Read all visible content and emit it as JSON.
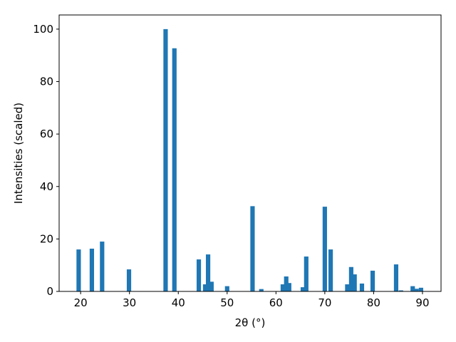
{
  "chart_data": {
    "type": "bar",
    "x_label": "2θ (°)",
    "y_label": "Intensities (scaled)",
    "color": "#1f77b4",
    "bar_width": 0.9,
    "x": [
      19.6,
      22.3,
      24.4,
      29.9,
      37.4,
      39.2,
      44.2,
      45.5,
      46.1,
      46.8,
      50.0,
      55.2,
      57.0,
      61.4,
      62.1,
      62.7,
      65.5,
      66.2,
      70.0,
      71.2,
      74.6,
      75.4,
      76.1,
      77.6,
      79.8,
      84.6,
      85.6,
      88.0,
      88.8,
      89.7
    ],
    "values": [
      16,
      16.3,
      19,
      8.4,
      100,
      92.7,
      12.2,
      2.7,
      14.1,
      3.7,
      2,
      32.5,
      0.9,
      2.7,
      5.7,
      3.2,
      1.6,
      13.3,
      32.3,
      16,
      2.7,
      9.3,
      6.5,
      3,
      7.9,
      10.3,
      0.4,
      2,
      1,
      1.4
    ],
    "xlim": [
      15.6,
      93.8
    ],
    "ylim": [
      0,
      105.4
    ],
    "xticks": [
      20,
      30,
      40,
      50,
      60,
      70,
      80,
      90
    ],
    "yticks": [
      0,
      20,
      40,
      60,
      80,
      100
    ]
  }
}
